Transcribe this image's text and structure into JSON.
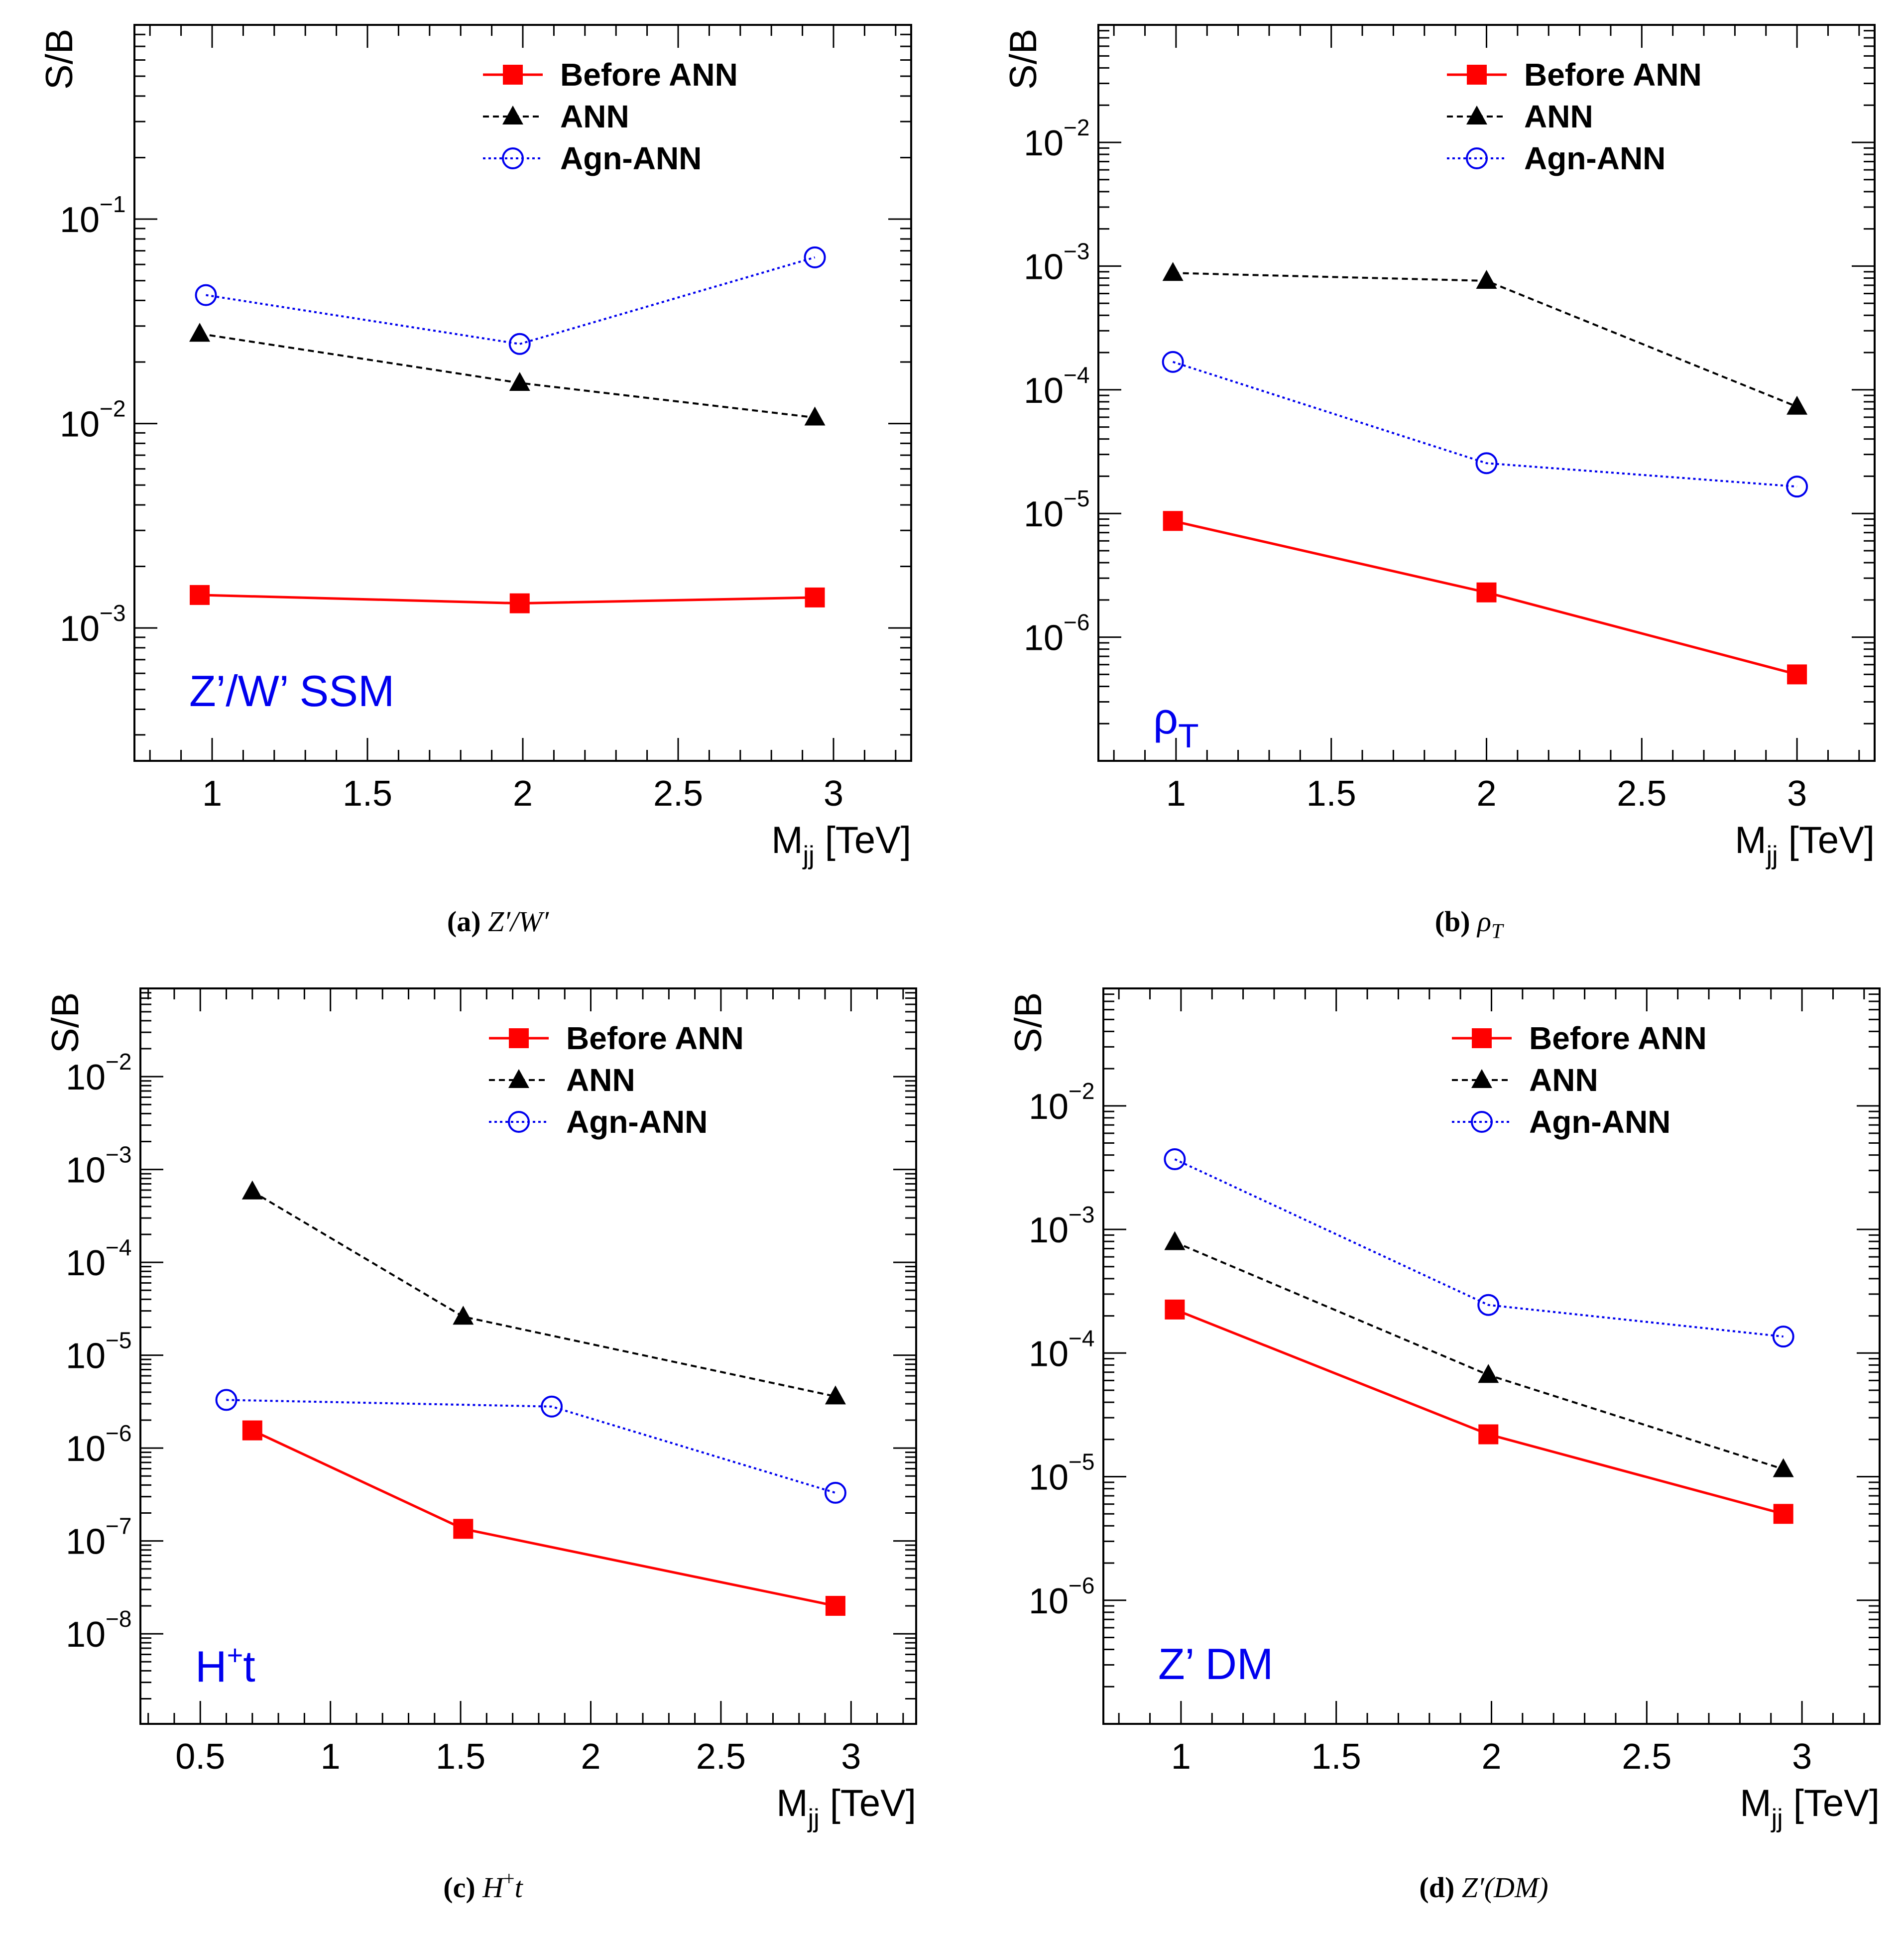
{
  "colors": {
    "before": "#ff0000",
    "ann": "#000000",
    "agn": "#0000ee",
    "signal_label": "#0000ee"
  },
  "legend": {
    "before": "Before ANN",
    "ann": "ANN",
    "agn": "Agn-ANN"
  },
  "chart_data": [
    {
      "type": "line",
      "id": "a",
      "ylabel": "S/B",
      "xlabel": "M",
      "xlabel_sub": "jj",
      "xlabel_unit": "[TeV]",
      "yscale": "log",
      "xlim": [
        0.75,
        3.25
      ],
      "ylim_exp": [
        -3.65,
        -0.05
      ],
      "xticks": [
        1,
        1.5,
        2,
        2.5,
        3
      ],
      "xtick_labels": [
        "1",
        "1.5",
        "2",
        "2.5",
        "3"
      ],
      "ytick_exps": [
        -3,
        -2,
        -1
      ],
      "ytick_base": "10",
      "ytick_exp_labels": [
        "−3",
        "−2",
        "−1"
      ],
      "signal_label": "Z’/W’ SSM",
      "legend_position": "top-right",
      "caption_tag": "(a)",
      "caption_text": "Z′/W′",
      "series": [
        {
          "key": "before",
          "name": "Before ANN",
          "x": [
            0.96,
            1.99,
            2.94
          ],
          "y": [
            0.00145,
            0.00132,
            0.00141
          ]
        },
        {
          "key": "ann",
          "name": "ANN",
          "x": [
            0.96,
            1.99,
            2.94
          ],
          "y": [
            0.0275,
            0.0158,
            0.0107
          ]
        },
        {
          "key": "agn",
          "name": "Agn-ANN",
          "x": [
            0.98,
            1.99,
            2.94
          ],
          "y": [
            0.0425,
            0.0245,
            0.065
          ]
        }
      ]
    },
    {
      "type": "line",
      "id": "b",
      "ylabel": "S/B",
      "xlabel": "M",
      "xlabel_sub": "jj",
      "xlabel_unit": "[TeV]",
      "yscale": "log",
      "xlim": [
        0.75,
        3.25
      ],
      "ylim_exp": [
        -7,
        -1.05
      ],
      "xticks": [
        1,
        1.5,
        2,
        2.5,
        3
      ],
      "xtick_labels": [
        "1",
        "1.5",
        "2",
        "2.5",
        "3"
      ],
      "ytick_exps": [
        -6,
        -5,
        -4,
        -3,
        -2
      ],
      "ytick_base": "10",
      "ytick_exp_labels": [
        "−6",
        "−5",
        "−4",
        "−3",
        "−2"
      ],
      "signal_label": "ρ",
      "signal_label_sub": "T",
      "legend_position": "top-right",
      "caption_tag": "(b)",
      "caption_text": "ρ",
      "caption_sub": "T",
      "series": [
        {
          "key": "before",
          "name": "Before ANN",
          "x": [
            0.99,
            2.0,
            3.0
          ],
          "y": [
            8.7e-06,
            2.3e-06,
            5e-07
          ]
        },
        {
          "key": "ann",
          "name": "ANN",
          "x": [
            0.99,
            2.0,
            3.0
          ],
          "y": [
            0.00088,
            0.00076,
            7.3e-05
          ]
        },
        {
          "key": "agn",
          "name": "Agn-ANN",
          "x": [
            0.99,
            2.0,
            3.0
          ],
          "y": [
            0.000168,
            2.55e-05,
            1.65e-05
          ]
        }
      ]
    },
    {
      "type": "line",
      "id": "c",
      "ylabel": "S/B",
      "xlabel": "M",
      "xlabel_sub": "jj",
      "xlabel_unit": "[TeV]",
      "yscale": "log",
      "xlim": [
        0.27,
        3.25
      ],
      "ylim_exp": [
        -8.97,
        -1.05
      ],
      "xticks": [
        0.5,
        1,
        1.5,
        2,
        2.5,
        3
      ],
      "xtick_labels": [
        "0.5",
        "1",
        "1.5",
        "2",
        "2.5",
        "3"
      ],
      "ytick_exps": [
        -8,
        -7,
        -6,
        -5,
        -4,
        -3,
        -2
      ],
      "ytick_base": "10",
      "ytick_exp_labels": [
        "−8",
        "−7",
        "−6",
        "−5",
        "−4",
        "−3",
        "−2"
      ],
      "signal_label": "H",
      "signal_label_sup": "+",
      "signal_label_tail": "t",
      "legend_position": "top-right",
      "caption_tag": "(c)",
      "caption_text": "H",
      "caption_sup": "+",
      "caption_tail": "t",
      "series": [
        {
          "key": "before",
          "name": "Before ANN",
          "x": [
            0.7,
            1.51,
            2.94
          ],
          "y": [
            1.55e-06,
            1.35e-07,
            2e-08
          ]
        },
        {
          "key": "ann",
          "name": "ANN",
          "x": [
            0.7,
            1.51,
            2.94
          ],
          "y": [
            0.00058,
            2.6e-05,
            3.6e-06
          ]
        },
        {
          "key": "agn",
          "name": "Agn-ANN",
          "x": [
            0.6,
            1.85,
            2.94
          ],
          "y": [
            3.3e-06,
            2.8e-06,
            3.3e-07
          ]
        }
      ]
    },
    {
      "type": "line",
      "id": "d",
      "ylabel": "S/B",
      "xlabel": "M",
      "xlabel_sub": "jj",
      "xlabel_unit": "[TeV]",
      "yscale": "log",
      "xlim": [
        0.75,
        3.25
      ],
      "ylim_exp": [
        -7,
        -1.05
      ],
      "xticks": [
        1,
        1.5,
        2,
        2.5,
        3
      ],
      "xtick_labels": [
        "1",
        "1.5",
        "2",
        "2.5",
        "3"
      ],
      "ytick_exps": [
        -6,
        -5,
        -4,
        -3,
        -2
      ],
      "ytick_base": "10",
      "ytick_exp_labels": [
        "−6",
        "−5",
        "−4",
        "−3",
        "−2"
      ],
      "signal_label": "Z’ DM",
      "legend_position": "top-right",
      "caption_tag": "(d)",
      "caption_text": "Z′(DM)",
      "series": [
        {
          "key": "before",
          "name": "Before ANN",
          "x": [
            0.98,
            1.99,
            2.94
          ],
          "y": [
            0.000225,
            2.2e-05,
            5e-06
          ]
        },
        {
          "key": "ann",
          "name": "ANN",
          "x": [
            0.98,
            1.99,
            2.94
          ],
          "y": [
            0.00079,
            6.65e-05,
            1.15e-05
          ]
        },
        {
          "key": "agn",
          "name": "Agn-ANN",
          "x": [
            0.98,
            1.99,
            2.94
          ],
          "y": [
            0.0037,
            0.000245,
            0.000136
          ]
        }
      ]
    }
  ]
}
